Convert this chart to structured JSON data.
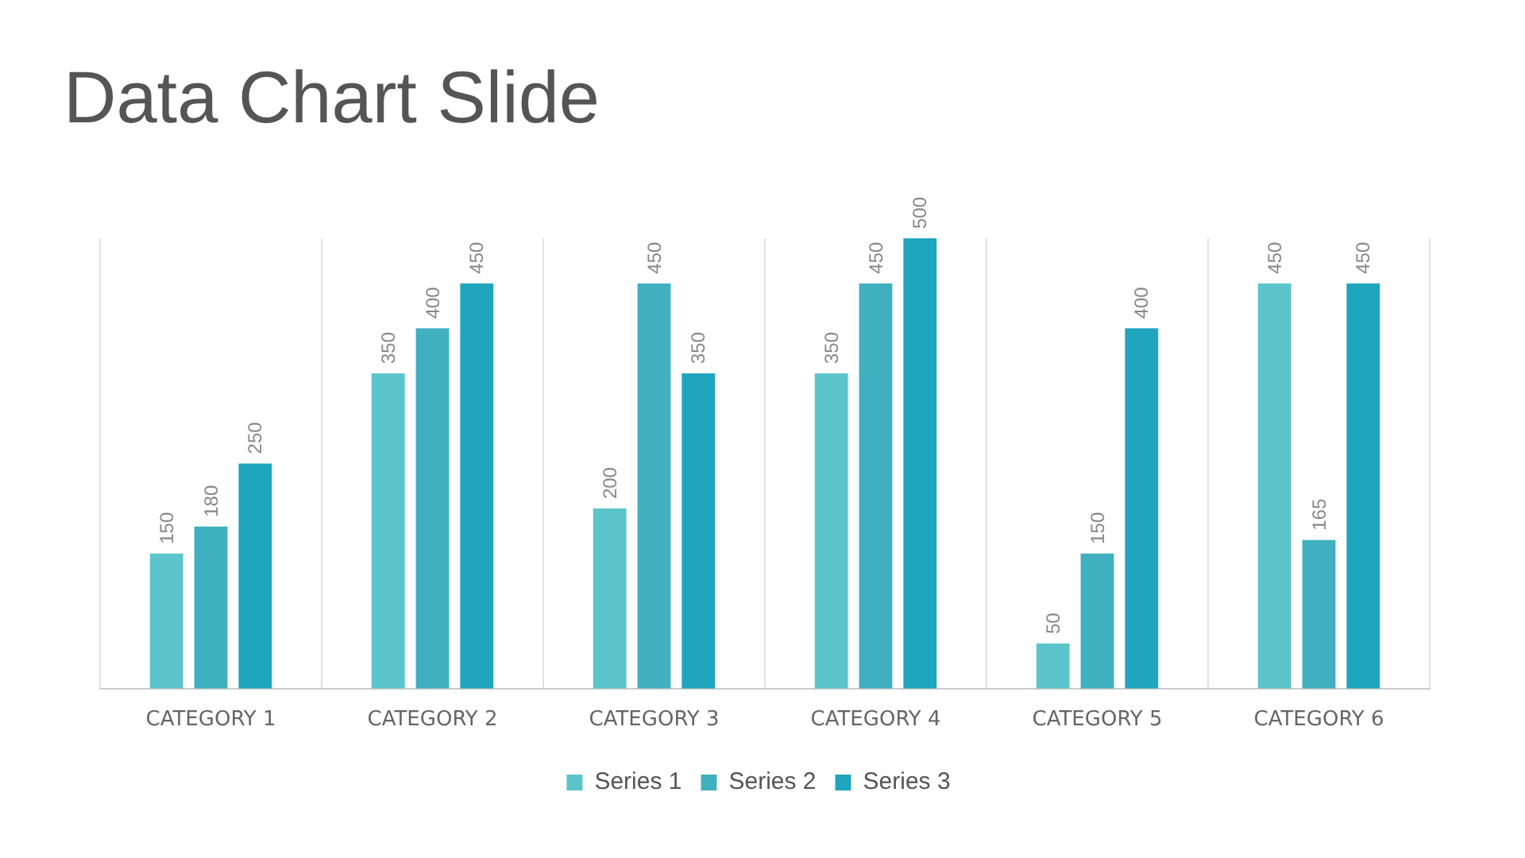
{
  "chart_data": {
    "type": "bar",
    "title": "Data Chart Slide",
    "categories": [
      "CATEGORY 1",
      "CATEGORY 2",
      "CATEGORY 3",
      "CATEGORY 4",
      "CATEGORY 5",
      "CATEGORY 6"
    ],
    "series": [
      {
        "name": "Series 1",
        "color": "#5bc5cb",
        "values": [
          150,
          350,
          200,
          350,
          50,
          450
        ]
      },
      {
        "name": "Series 2",
        "color": "#40b0c0",
        "values": [
          180,
          400,
          450,
          450,
          150,
          165
        ]
      },
      {
        "name": "Series 3",
        "color": "#1fa5bd",
        "values": [
          250,
          450,
          350,
          500,
          400,
          450
        ]
      }
    ],
    "ylim": [
      0,
      500
    ],
    "tick_labels": "x",
    "grid": "x",
    "legend": "bottom",
    "data_labels": true
  }
}
